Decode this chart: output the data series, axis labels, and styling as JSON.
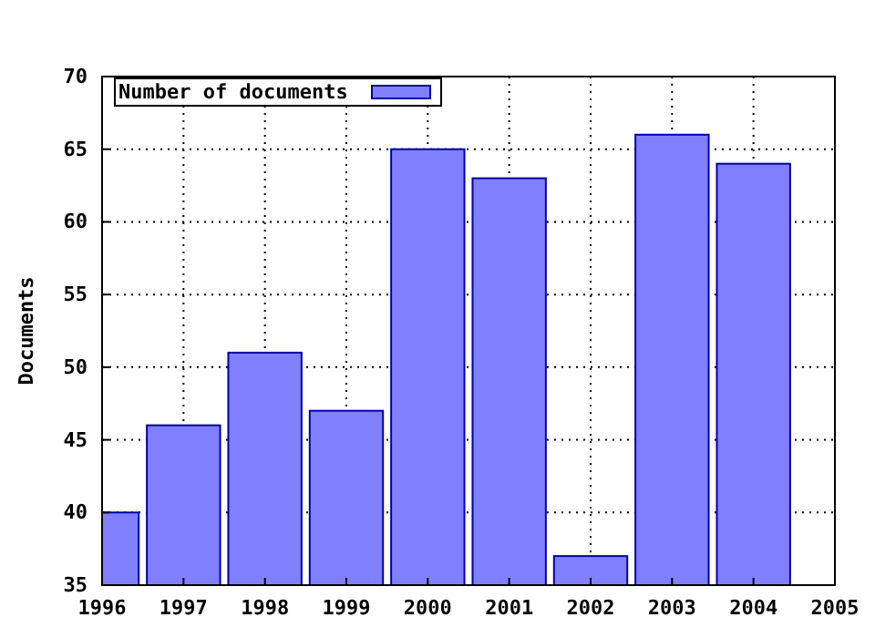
{
  "chart_data": {
    "type": "bar",
    "ylabel": "Documents",
    "x": [
      1996,
      1997,
      1998,
      1999,
      2000,
      2001,
      2002,
      2003,
      2004
    ],
    "series": [
      {
        "name": "Number of documents",
        "color": "#8080ff",
        "values": [
          40,
          46,
          51,
          47,
          65,
          63,
          37,
          66,
          64
        ]
      }
    ],
    "xlim": [
      1996,
      2005
    ],
    "xticks": [
      1996,
      1997,
      1998,
      1999,
      2000,
      2001,
      2002,
      2003,
      2004,
      2005
    ],
    "ylim": [
      35,
      70
    ],
    "yticks": [
      35,
      40,
      45,
      50,
      55,
      60,
      65,
      70
    ],
    "grid": true,
    "legend": "top left"
  }
}
